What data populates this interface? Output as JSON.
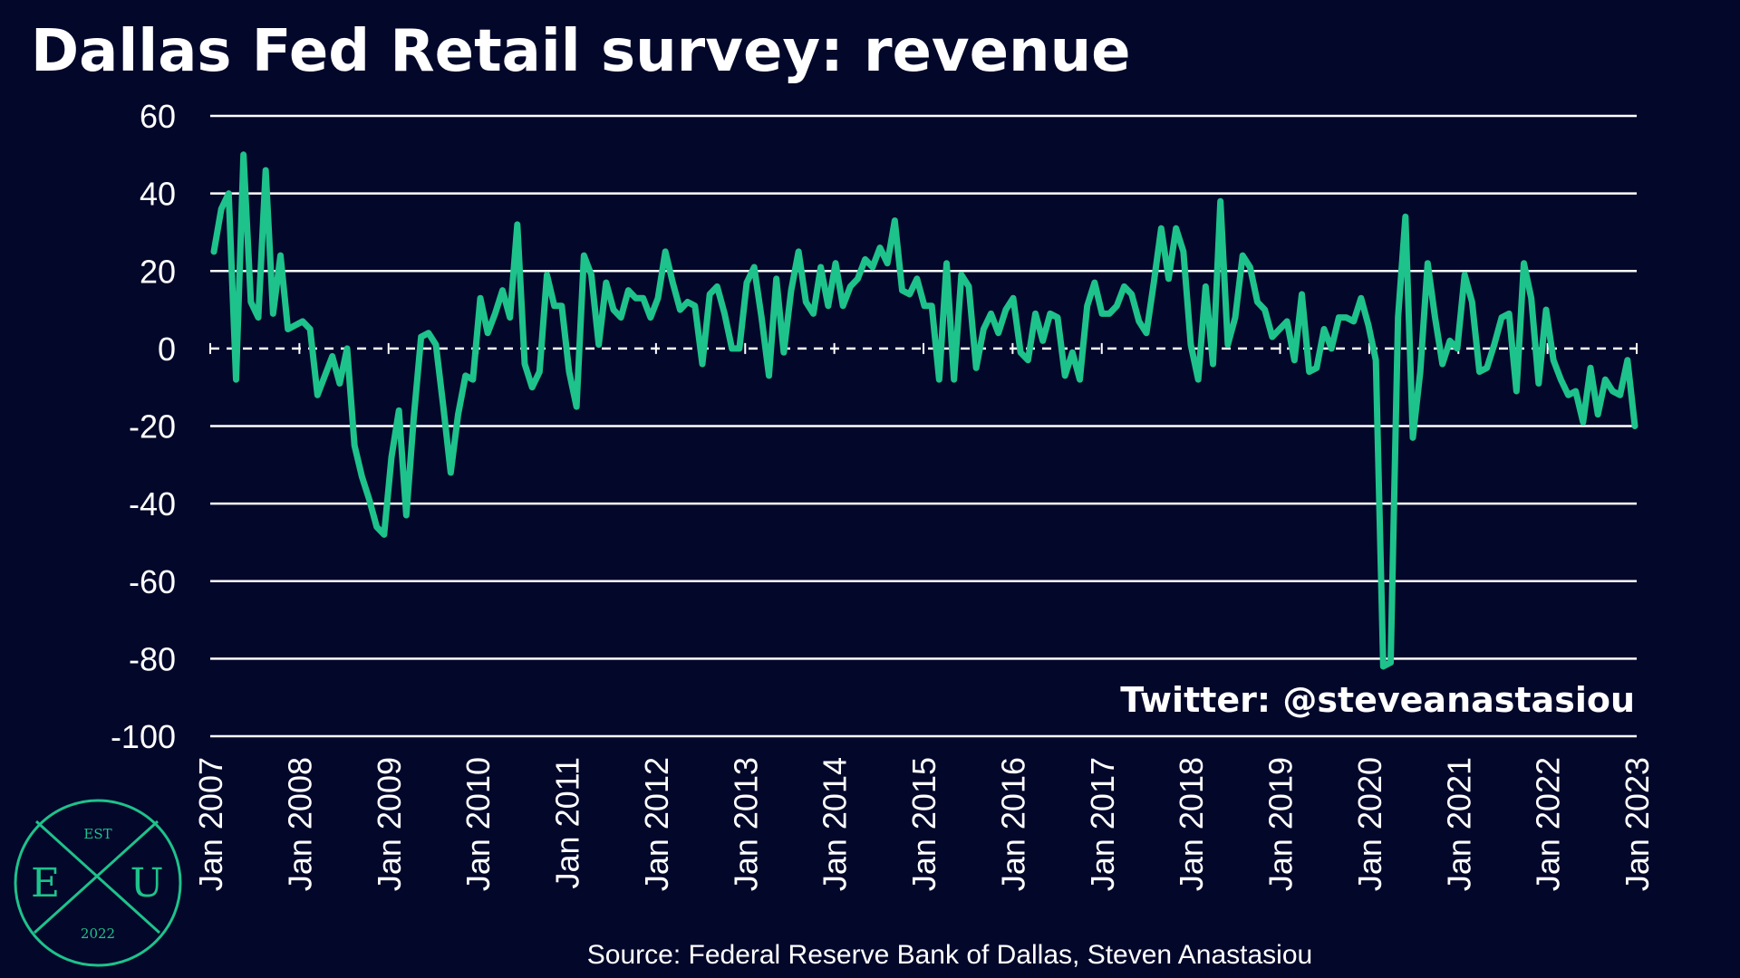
{
  "chart_data": {
    "type": "line",
    "title": "Dallas Fed Retail survey: revenue",
    "xlabel": "",
    "ylabel": "",
    "ylim": [
      -100,
      60
    ],
    "yticks": [
      "60",
      "40",
      "20",
      "0",
      "-20",
      "-40",
      "-60",
      "-80",
      "-100"
    ],
    "xticks": [
      "Jan 2007",
      "Jan 2008",
      "Jan 2009",
      "Jan 2010",
      "Jan 2011",
      "Jan 2012",
      "Jan 2013",
      "Jan 2014",
      "Jan 2015",
      "Jan 2016",
      "Jan 2017",
      "Jan 2018",
      "Jan 2019",
      "Jan 2020",
      "Jan 2021",
      "Jan 2022",
      "Jan 2023"
    ],
    "x_start": "Jan 2007",
    "x_end": "Jan 2023",
    "zero_line": "dashed",
    "grid": true,
    "line_color": "#1ec28b",
    "series": [
      {
        "name": "",
        "values": [
          25,
          36,
          40,
          -8,
          50,
          12,
          8,
          46,
          9,
          24,
          5,
          6,
          7,
          5,
          -12,
          -7,
          -2,
          -9,
          0,
          -25,
          -33,
          -39,
          -46,
          -48,
          -28,
          -16,
          -43,
          -18,
          3,
          4,
          1,
          -15,
          -32,
          -17,
          -7,
          -8,
          13,
          4,
          9,
          15,
          8,
          32,
          -4,
          -10,
          -6,
          19,
          11,
          11,
          -6,
          -15,
          24,
          19,
          1,
          17,
          10,
          8,
          15,
          13,
          13,
          8,
          13,
          25,
          17,
          10,
          12,
          11,
          -4,
          14,
          16,
          9,
          0,
          0,
          17,
          21,
          8,
          -7,
          18,
          -1,
          15,
          25,
          12,
          9,
          21,
          11,
          22,
          11,
          16,
          18,
          23,
          21,
          26,
          22,
          33,
          15,
          14,
          18,
          11,
          11,
          -8,
          22,
          -8,
          19,
          16,
          -5,
          5,
          9,
          4,
          10,
          13,
          -1,
          -3,
          9,
          2,
          9,
          8,
          -7,
          -1,
          -8,
          11,
          17,
          9,
          9,
          11,
          16,
          14,
          7,
          4,
          17,
          31,
          18,
          31,
          25,
          1,
          -8,
          16,
          -4,
          38,
          1,
          8,
          24,
          21,
          12,
          10,
          3,
          5,
          7,
          -3,
          14,
          -6,
          -5,
          5,
          0,
          8,
          8,
          7,
          13,
          6,
          -3,
          -82,
          -81,
          8,
          34,
          -23,
          -6,
          22,
          8,
          -4,
          2,
          0,
          19,
          12,
          -6,
          -5,
          1,
          8,
          9,
          -11,
          22,
          13,
          -9,
          10,
          -3,
          -8,
          -12,
          -11,
          -19,
          -5,
          -17,
          -8,
          -11,
          -12,
          -3,
          -20
        ]
      }
    ],
    "source": "Source: Federal Reserve Bank of Dallas, Steven Anastasiou",
    "annotation": "Twitter: @steveanastasiou"
  },
  "logo": {
    "top": "EST",
    "left": "E",
    "center": "X",
    "right": "U",
    "bottom": "2022",
    "color": "#1ec28b"
  }
}
